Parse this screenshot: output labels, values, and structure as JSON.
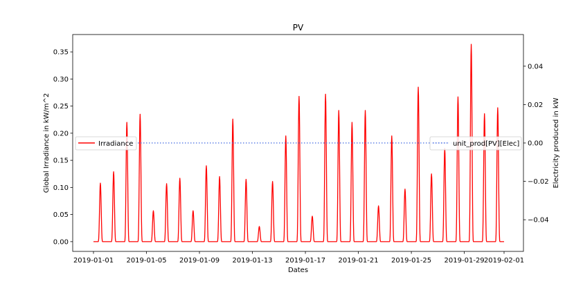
{
  "chart_data": {
    "type": "line",
    "title": "PV",
    "xlabel": "Dates",
    "ylabel_left": "Global Irradiance in kW/m^2",
    "ylabel_right": "Electricity produced in kW",
    "x_range": [
      "2019-01-01",
      "2019-02-01"
    ],
    "ylim_left": [
      -0.018,
      0.382
    ],
    "ylim_right": [
      -0.0565,
      0.0565
    ],
    "x_ticks": [
      "2019-01-01",
      "2019-01-05",
      "2019-01-09",
      "2019-01-13",
      "2019-01-17",
      "2019-01-21",
      "2019-01-25",
      "2019-01-29",
      "2019-02-01"
    ],
    "y_ticks_left": [
      "0.00",
      "0.05",
      "0.10",
      "0.15",
      "0.20",
      "0.25",
      "0.30",
      "0.35"
    ],
    "y_ticks_right": [
      "−0.04",
      "−0.02",
      "0.00",
      "0.02",
      "0.04"
    ],
    "grid": false,
    "series": [
      {
        "name": "Irradiance",
        "axis": "left",
        "color": "#ff0000",
        "style": "solid",
        "daily_peaks": [
          {
            "date": "2019-01-01",
            "peak": 0.108
          },
          {
            "date": "2019-01-02",
            "peak": 0.129
          },
          {
            "date": "2019-01-03",
            "peak": 0.22
          },
          {
            "date": "2019-01-04",
            "peak": 0.235
          },
          {
            "date": "2019-01-05",
            "peak": 0.057
          },
          {
            "date": "2019-01-06",
            "peak": 0.107
          },
          {
            "date": "2019-01-07",
            "peak": 0.117
          },
          {
            "date": "2019-01-08",
            "peak": 0.057
          },
          {
            "date": "2019-01-09",
            "peak": 0.14
          },
          {
            "date": "2019-01-10",
            "peak": 0.12
          },
          {
            "date": "2019-01-11",
            "peak": 0.226
          },
          {
            "date": "2019-01-12",
            "peak": 0.115
          },
          {
            "date": "2019-01-13",
            "peak": 0.028
          },
          {
            "date": "2019-01-14",
            "peak": 0.111
          },
          {
            "date": "2019-01-15",
            "peak": 0.195
          },
          {
            "date": "2019-01-16",
            "peak": 0.268
          },
          {
            "date": "2019-01-17",
            "peak": 0.047
          },
          {
            "date": "2019-01-18",
            "peak": 0.272
          },
          {
            "date": "2019-01-19",
            "peak": 0.242
          },
          {
            "date": "2019-01-20",
            "peak": 0.22
          },
          {
            "date": "2019-01-21",
            "peak": 0.242
          },
          {
            "date": "2019-01-22",
            "peak": 0.066
          },
          {
            "date": "2019-01-23",
            "peak": 0.195
          },
          {
            "date": "2019-01-24",
            "peak": 0.097
          },
          {
            "date": "2019-01-25",
            "peak": 0.285
          },
          {
            "date": "2019-01-26",
            "peak": 0.125
          },
          {
            "date": "2019-01-27",
            "peak": 0.172
          },
          {
            "date": "2019-01-28",
            "peak": 0.267
          },
          {
            "date": "2019-01-29",
            "peak": 0.364
          },
          {
            "date": "2019-01-30",
            "peak": 0.236
          },
          {
            "date": "2019-01-31",
            "peak": 0.247
          }
        ]
      },
      {
        "name": "unit_prod[PV][Elec]",
        "axis": "right",
        "color": "#4169e1",
        "style": "dotted",
        "values": [
          0.0,
          0.0
        ],
        "x": [
          "2019-01-01",
          "2019-02-01"
        ]
      }
    ],
    "legends": [
      {
        "label": "Irradiance",
        "position": "center-left"
      },
      {
        "label": "unit_prod[PV][Elec]",
        "position": "center-right"
      }
    ]
  }
}
